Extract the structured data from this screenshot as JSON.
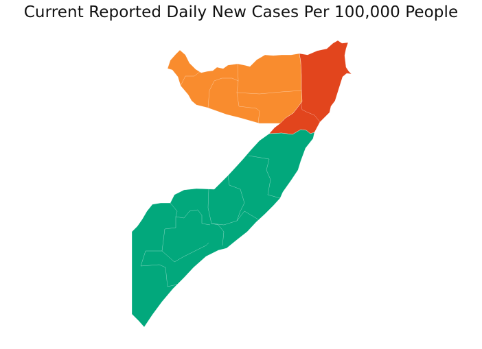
{
  "title": "Current Reported Daily New Cases Per 100,000 People",
  "legend_colors": {
    "north_west": "#f98c2e",
    "north_east": "#e2451d",
    "south": "#02a87c"
  },
  "regions": [
    {
      "name": "north-west",
      "color_key": "north_west"
    },
    {
      "name": "north-east",
      "color_key": "north_east"
    },
    {
      "name": "south",
      "color_key": "south"
    }
  ]
}
